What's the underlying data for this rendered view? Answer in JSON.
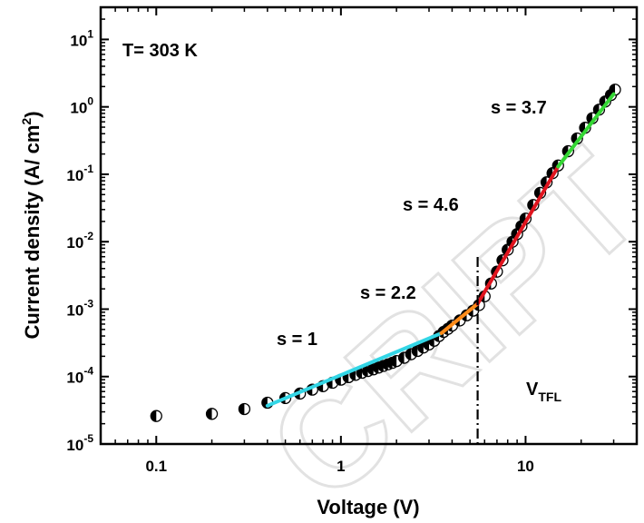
{
  "chart_data": {
    "type": "scatter",
    "title": "",
    "xlabel": "Voltage (V)",
    "ylabel_main": "Current density (A/ cm",
    "ylabel_sup": "2",
    "ylabel_tail": ")",
    "xscale": "log",
    "yscale": "log",
    "xlim": [
      0.05,
      40
    ],
    "ylim": [
      1e-05,
      30
    ],
    "grid": false,
    "x_ticks": [
      {
        "value": 0.1,
        "label": "0.1"
      },
      {
        "value": 1,
        "label": "1"
      },
      {
        "value": 10,
        "label": "10"
      }
    ],
    "y_ticks": [
      {
        "value": 1e-05,
        "base": "10",
        "exp": "-5"
      },
      {
        "value": 0.0001,
        "base": "10",
        "exp": "-4"
      },
      {
        "value": 0.001,
        "base": "10",
        "exp": "-3"
      },
      {
        "value": 0.01,
        "base": "10",
        "exp": "-2"
      },
      {
        "value": 0.1,
        "base": "10",
        "exp": "-1"
      },
      {
        "value": 1,
        "base": "10",
        "exp": "0"
      },
      {
        "value": 10,
        "base": "10",
        "exp": "1"
      }
    ],
    "points": [
      [
        0.1,
        2.6e-05
      ],
      [
        0.2,
        2.8e-05
      ],
      [
        0.3,
        3.3e-05
      ],
      [
        0.4,
        4.1e-05
      ],
      [
        0.5,
        4.8e-05
      ],
      [
        0.6,
        5.6e-05
      ],
      [
        0.7,
        6.4e-05
      ],
      [
        0.8,
        7.2e-05
      ],
      [
        0.9,
        8.1e-05
      ],
      [
        1.0,
        9e-05
      ],
      [
        1.1,
        9.8e-05
      ],
      [
        1.2,
        0.000106
      ],
      [
        1.3,
        0.000114
      ],
      [
        1.4,
        0.000121
      ],
      [
        1.5,
        0.000128
      ],
      [
        1.6,
        0.000136
      ],
      [
        1.7,
        0.000144
      ],
      [
        1.8,
        0.000152
      ],
      [
        1.9,
        0.00016
      ],
      [
        2.0,
        0.00017
      ],
      [
        2.2,
        0.00019
      ],
      [
        2.4,
        0.000215
      ],
      [
        2.6,
        0.00024
      ],
      [
        2.8,
        0.00027
      ],
      [
        3.0,
        0.0003
      ],
      [
        3.2,
        0.00034
      ],
      [
        3.4,
        0.0004
      ],
      [
        3.6,
        0.00046
      ],
      [
        3.8,
        0.00051
      ],
      [
        4.0,
        0.00057
      ],
      [
        4.4,
        0.00068
      ],
      [
        4.8,
        0.00081
      ],
      [
        5.2,
        0.00095
      ],
      [
        5.6,
        0.00115
      ],
      [
        6.0,
        0.00155
      ],
      [
        6.5,
        0.0024
      ],
      [
        7.0,
        0.0036
      ],
      [
        7.5,
        0.0053
      ],
      [
        8.0,
        0.0076
      ],
      [
        8.5,
        0.01
      ],
      [
        9.0,
        0.013
      ],
      [
        9.5,
        0.017
      ],
      [
        10.0,
        0.022
      ],
      [
        11.0,
        0.035
      ],
      [
        12.0,
        0.053
      ],
      [
        13.0,
        0.076
      ],
      [
        14.0,
        0.104
      ],
      [
        15.0,
        0.135
      ],
      [
        17.0,
        0.22
      ],
      [
        19.0,
        0.34
      ],
      [
        21.0,
        0.49
      ],
      [
        23.0,
        0.68
      ],
      [
        25.0,
        0.91
      ],
      [
        27.0,
        1.2
      ],
      [
        29.0,
        1.5
      ],
      [
        30.5,
        1.8
      ]
    ],
    "fits": [
      {
        "label": "s = 1",
        "color": "#33d6e6",
        "from": [
          0.4,
          3.7e-05
        ],
        "to": [
          3.5,
          0.00044
        ]
      },
      {
        "label": "s = 2.2",
        "color": "#ff8c1a",
        "from": [
          3.5,
          0.00044
        ],
        "to": [
          5.5,
          0.0012
        ]
      },
      {
        "label": "s = 4.6",
        "color": "#e0141e",
        "from": [
          5.5,
          0.0012
        ],
        "to": [
          15,
          0.13
        ]
      },
      {
        "label": "s = 3.7",
        "color": "#33d633",
        "from": [
          15,
          0.13
        ],
        "to": [
          30,
          1.55
        ]
      }
    ],
    "vtfl_x": 5.5,
    "annotations": {
      "temperature": "T= 303 K",
      "s1": "s = 1",
      "s2": "s = 2.2",
      "s3": "s = 4.6",
      "s4": "s = 3.7",
      "vtfl_main": "V",
      "vtfl_sub": "TFL"
    }
  },
  "watermark": "CRIPT"
}
